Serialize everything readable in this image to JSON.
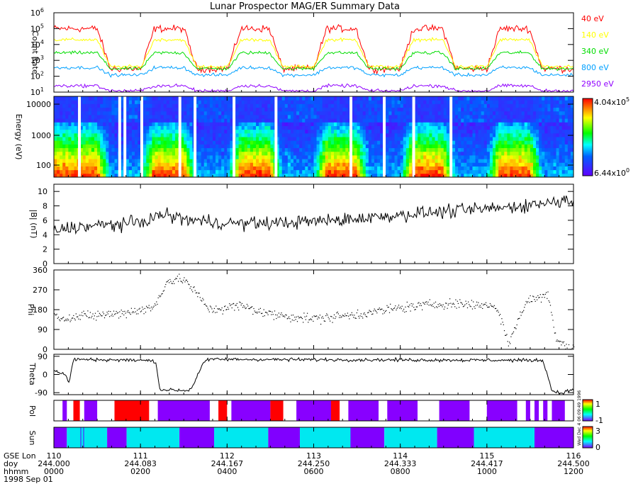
{
  "title": "Lunar Prospector MAG/ER Summary Data",
  "chart_data": [
    {
      "type": "line",
      "name": "count-rate",
      "ylabel": "Count Rate",
      "yscale": "log",
      "ylim": [
        10,
        1000000
      ],
      "yticks": [
        {
          "base": "10",
          "exp": "1",
          "value": 10
        },
        {
          "base": "10",
          "exp": "2",
          "value": 100
        },
        {
          "base": "10",
          "exp": "3",
          "value": 1000
        },
        {
          "base": "10",
          "exp": "4",
          "value": 10000
        },
        {
          "base": "10",
          "exp": "5",
          "value": 100000
        },
        {
          "base": "10",
          "exp": "6",
          "value": 1000000
        }
      ],
      "series": [
        {
          "name": "40 eV",
          "color": "#ff0000",
          "day": 100000,
          "night": 300
        },
        {
          "name": "140 eV",
          "color": "#ffff00",
          "day": 20000,
          "night": 400
        },
        {
          "name": "340 eV",
          "color": "#00dd00",
          "day": 3000,
          "night": 300
        },
        {
          "name": "800 eV",
          "color": "#00a0ff",
          "day": 350,
          "night": 120
        },
        {
          "name": "2950 eV",
          "color": "#9000ff",
          "day": 25,
          "night": 12
        }
      ]
    },
    {
      "type": "heatmap",
      "name": "energy-spectrogram",
      "ylabel": "Energy (eV)",
      "yscale": "log",
      "ylim": [
        40,
        15000
      ],
      "yticks": [
        "10000",
        "1000",
        "100"
      ],
      "colorbar": {
        "max_base": "4.04x10",
        "max_exp": "5",
        "min_base": "6.44x10",
        "min_exp": "0"
      },
      "data_gaps_hr": [
        0.59,
        1.52,
        1.64,
        2.03,
        2.91,
        3.26,
        4.16,
        5.13,
        6.86,
        7.63,
        8.31,
        9.17
      ]
    },
    {
      "type": "line",
      "name": "b-magnitude",
      "ylabel": "|B| (nT)",
      "ylim": [
        0,
        11
      ],
      "yticks": [
        "0",
        "2",
        "4",
        "6",
        "8",
        "10"
      ],
      "trend_hr": [
        0,
        0.4,
        2.0,
        2.5,
        3.2,
        4.0,
        5.0,
        6.5,
        8.5,
        10.5,
        12
      ],
      "trend_val": [
        4.5,
        5.0,
        5.7,
        6.8,
        6.0,
        5.6,
        5.6,
        6.0,
        7.0,
        7.8,
        8.9
      ]
    },
    {
      "type": "scatter",
      "name": "phi",
      "ylabel": "Phi",
      "ylim": [
        0,
        360
      ],
      "yticks": [
        "0",
        "90",
        "180",
        "270",
        "360"
      ],
      "trend_hr": [
        0,
        0.4,
        0.6,
        1.5,
        2.3,
        2.6,
        3.0,
        3.6,
        4.3,
        5.0,
        6.0,
        7.0,
        8.0,
        9.0,
        10.2,
        10.5,
        10.9,
        11.4,
        11.6,
        11.9
      ],
      "trend_val": [
        150,
        145,
        150,
        165,
        190,
        310,
        320,
        180,
        200,
        160,
        140,
        160,
        190,
        210,
        200,
        30,
        220,
        250,
        50,
        10
      ]
    },
    {
      "type": "line",
      "name": "theta",
      "ylabel": "Theta",
      "ylim": [
        -100,
        100
      ],
      "yticks": [
        "-90",
        "0",
        "90"
      ],
      "trend_hr": [
        0,
        0.25,
        0.35,
        0.45,
        2.1,
        2.35,
        2.45,
        3.1,
        3.2,
        3.45,
        3.6,
        11.3,
        11.5,
        11.7,
        12
      ],
      "trend_val": [
        20,
        0,
        -40,
        75,
        70,
        65,
        -75,
        -80,
        -60,
        60,
        75,
        70,
        -80,
        -92,
        -75
      ]
    },
    {
      "type": "heatmap",
      "name": "polarity-strip",
      "ylabel": "Pol",
      "colorbar": {
        "ticks": [
          "1",
          "-1"
        ]
      },
      "segments": [
        {
          "s": 0.2,
          "e": 0.3,
          "v": "away"
        },
        {
          "s": 0.45,
          "e": 0.6,
          "v": "toward"
        },
        {
          "s": 0.6,
          "e": 0.65,
          "v": "gap"
        },
        {
          "s": 0.7,
          "e": 1.0,
          "v": "away"
        },
        {
          "s": 1.4,
          "e": 2.2,
          "v": "toward"
        },
        {
          "s": 2.2,
          "e": 2.4,
          "v": "gap"
        },
        {
          "s": 2.4,
          "e": 3.6,
          "v": "away"
        },
        {
          "s": 3.8,
          "e": 4.0,
          "v": "toward"
        },
        {
          "s": 4.1,
          "e": 5.0,
          "v": "away"
        },
        {
          "s": 5.0,
          "e": 5.3,
          "v": "toward"
        },
        {
          "s": 5.3,
          "e": 5.6,
          "v": "gap"
        },
        {
          "s": 5.6,
          "e": 6.4,
          "v": "away"
        },
        {
          "s": 6.4,
          "e": 6.6,
          "v": "toward"
        },
        {
          "s": 6.8,
          "e": 7.5,
          "v": "away"
        },
        {
          "s": 7.5,
          "e": 7.7,
          "v": "gap"
        },
        {
          "s": 7.7,
          "e": 8.4,
          "v": "away"
        },
        {
          "s": 8.4,
          "e": 8.9,
          "v": "gap"
        },
        {
          "s": 8.9,
          "e": 9.6,
          "v": "away"
        },
        {
          "s": 10.0,
          "e": 10.7,
          "v": "away"
        },
        {
          "s": 10.9,
          "e": 11.0,
          "v": "away"
        },
        {
          "s": 11.1,
          "e": 11.2,
          "v": "away"
        },
        {
          "s": 11.3,
          "e": 11.4,
          "v": "away"
        },
        {
          "s": 11.5,
          "e": 11.8,
          "v": "away"
        }
      ]
    },
    {
      "type": "heatmap",
      "name": "sun-strip",
      "ylabel": "Sun",
      "colorbar": {
        "ticks": [
          "3",
          "0"
        ]
      },
      "segments": [
        {
          "s": 0.0,
          "e": 0.3,
          "v": "dark"
        },
        {
          "s": 0.3,
          "e": 1.23,
          "v": "sun"
        },
        {
          "s": 1.23,
          "e": 1.68,
          "v": "dark"
        },
        {
          "s": 1.68,
          "e": 2.9,
          "v": "sun"
        },
        {
          "s": 2.9,
          "e": 3.7,
          "v": "dark"
        },
        {
          "s": 3.7,
          "e": 4.95,
          "v": "sun"
        },
        {
          "s": 4.95,
          "e": 5.68,
          "v": "dark"
        },
        {
          "s": 5.68,
          "e": 6.85,
          "v": "sun"
        },
        {
          "s": 6.85,
          "e": 7.63,
          "v": "dark"
        },
        {
          "s": 7.63,
          "e": 8.85,
          "v": "sun"
        },
        {
          "s": 8.85,
          "e": 9.7,
          "v": "dark"
        },
        {
          "s": 9.7,
          "e": 11.1,
          "v": "sun"
        },
        {
          "s": 11.1,
          "e": 12.0,
          "v": "dark"
        }
      ]
    }
  ],
  "x_axis": {
    "row_labels": [
      "GSE Lon",
      "doy",
      "hhmm"
    ],
    "date": "1998 Sep 01",
    "ticks": [
      {
        "hr": 0,
        "lon": "110",
        "doy": "244.000",
        "hhmm": "0000"
      },
      {
        "hr": 2,
        "lon": "111",
        "doy": "244.083",
        "hhmm": "0200"
      },
      {
        "hr": 4,
        "lon": "112",
        "doy": "244.167",
        "hhmm": "0400"
      },
      {
        "hr": 6,
        "lon": "113",
        "doy": "244.250",
        "hhmm": "0600"
      },
      {
        "hr": 8,
        "lon": "114",
        "doy": "244.333",
        "hhmm": "0800"
      },
      {
        "hr": 10,
        "lon": "115",
        "doy": "244.417",
        "hhmm": "1000"
      },
      {
        "hr": 12,
        "lon": "116",
        "doy": "244.500",
        "hhmm": "1200"
      }
    ],
    "range_hr": [
      0,
      12
    ]
  },
  "sun_cycle": {
    "night_start_hr": [
      1.3,
      3.3,
      5.28,
      7.28,
      9.28,
      11.28
    ],
    "night_length_hr": 0.72
  },
  "side_note": "Wed Dec 4 06:09:49 1996",
  "colors": {
    "toward": "#ff0000",
    "away": "#8800ff",
    "gap": "#ffffff",
    "sun": "#00e8f0",
    "dark": "#8000ff"
  }
}
